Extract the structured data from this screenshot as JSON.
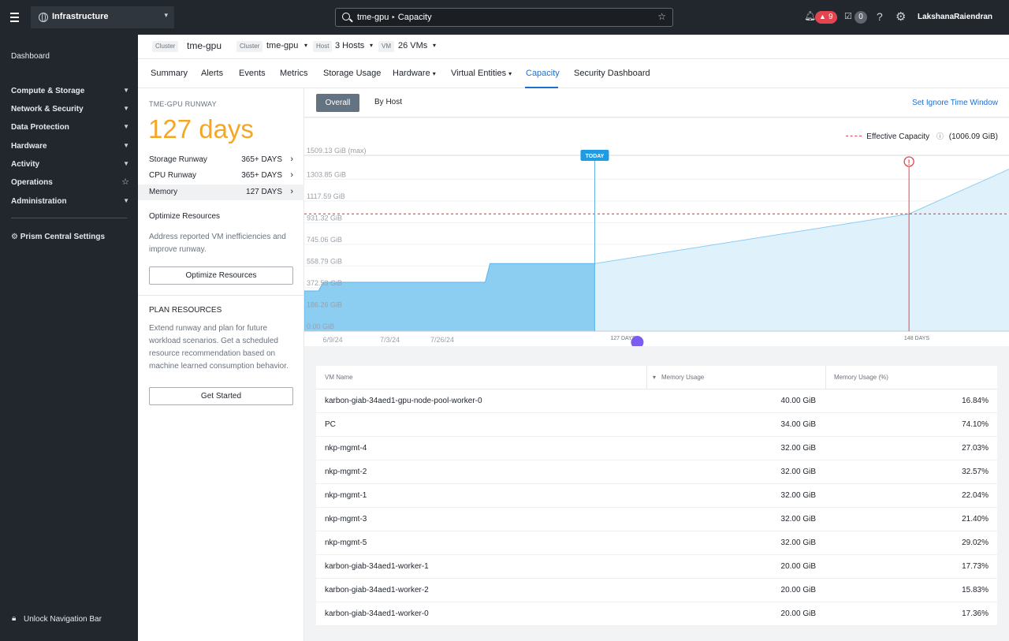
{
  "topbar": {
    "app_label": "Infrastructure",
    "search_entity": "tme-gpu",
    "search_sep": "‣",
    "search_page": "Capacity",
    "alert_count": "9",
    "task_count": "0",
    "user": "LakshanaRaiendran"
  },
  "sidebar": {
    "dashboard": "Dashboard",
    "items": [
      {
        "label": "Compute & Storage"
      },
      {
        "label": "Network & Security"
      },
      {
        "label": "Data Protection"
      },
      {
        "label": "Hardware"
      },
      {
        "label": "Activity"
      },
      {
        "label": "Operations"
      },
      {
        "label": "Administration"
      }
    ],
    "prism_settings": "Prism Central Settings",
    "unlock": "Unlock Navigation Bar"
  },
  "entity": {
    "cluster_chip": "Cluster",
    "cluster_name": "tme-gpu",
    "cluster_chip2": "Cluster",
    "cluster_value": "tme-gpu",
    "host_chip": "Host",
    "host_value": "3 Hosts",
    "vm_chip": "VM",
    "vm_value": "26 VMs"
  },
  "tabs": [
    "Summary",
    "Alerts",
    "Events",
    "Metrics",
    "Storage Usage",
    "Hardware",
    "Virtual Entities",
    "Capacity",
    "Security Dashboard"
  ],
  "left_panel": {
    "runway_title": "TME-GPU RUNWAY",
    "runway_days": "127 days",
    "rows": [
      {
        "label": "Storage Runway",
        "value": "365+ DAYS"
      },
      {
        "label": "CPU Runway",
        "value": "365+ DAYS"
      },
      {
        "label": "Memory",
        "value": "127 DAYS"
      }
    ],
    "optimize_head": "Optimize Resources",
    "optimize_text": "Address reported VM inefficiencies and improve runway.",
    "optimize_button": "Optimize Resources",
    "plan_head": "PLAN RESOURCES",
    "plan_text": "Extend runway and plan for future workload scenarios. Get a scheduled resource recommendation based on machine learned consumption behavior.",
    "plan_button": "Get Started"
  },
  "toolbar": {
    "overall": "Overall",
    "by_host": "By Host",
    "ignore_link": "Set Ignore Time Window"
  },
  "chart_data": {
    "type": "area",
    "legend_label": "Effective Capacity",
    "legend_value": "(1006.09 GiB)",
    "y_ticks": [
      "0.00 GiB",
      "186.26 GiB",
      "372.53 GiB",
      "558.79 GiB",
      "745.06 GiB",
      "931.32 GiB",
      "1117.59 GiB",
      "1303.85 GiB",
      "1509.13 GiB (max)"
    ],
    "y_values": [
      0,
      186.26,
      372.53,
      558.79,
      745.06,
      931.32,
      1117.59,
      1303.85,
      1509.13
    ],
    "x_ticks": [
      "6/9/24",
      "7/3/24",
      "7/26/24"
    ],
    "today_label": "TODAY",
    "runway_marker_label": "127 DAYS",
    "end_label": "148 DAYS",
    "effective_capacity": 1006.09,
    "ylim": [
      0,
      1509.13
    ],
    "x_span_days": 148,
    "today_day": 61,
    "runway_day": 127,
    "actual": [
      [
        0,
        345
      ],
      [
        3,
        345
      ],
      [
        4,
        420
      ],
      [
        38,
        420
      ],
      [
        39,
        580
      ],
      [
        61,
        580
      ]
    ],
    "forecast": [
      [
        61,
        580
      ],
      [
        127,
        1006.09
      ],
      [
        148,
        1390
      ]
    ]
  },
  "table": {
    "headers": {
      "name": "VM Name",
      "mem": "Memory Usage",
      "pct": "Memory Usage (%)"
    },
    "rows": [
      {
        "name": "karbon-giab-34aed1-gpu-node-pool-worker-0",
        "mem": "40.00 GiB",
        "pct": "16.84%"
      },
      {
        "name": "PC",
        "mem": "34.00 GiB",
        "pct": "74.10%"
      },
      {
        "name": "nkp-mgmt-4",
        "mem": "32.00 GiB",
        "pct": "27.03%"
      },
      {
        "name": "nkp-mgmt-2",
        "mem": "32.00 GiB",
        "pct": "32.57%"
      },
      {
        "name": "nkp-mgmt-1",
        "mem": "32.00 GiB",
        "pct": "22.04%"
      },
      {
        "name": "nkp-mgmt-3",
        "mem": "32.00 GiB",
        "pct": "21.40%"
      },
      {
        "name": "nkp-mgmt-5",
        "mem": "32.00 GiB",
        "pct": "29.02%"
      },
      {
        "name": "karbon-giab-34aed1-worker-1",
        "mem": "20.00 GiB",
        "pct": "17.73%"
      },
      {
        "name": "karbon-giab-34aed1-worker-2",
        "mem": "20.00 GiB",
        "pct": "15.83%"
      },
      {
        "name": "karbon-giab-34aed1-worker-0",
        "mem": "20.00 GiB",
        "pct": "17.36%"
      }
    ]
  },
  "colors": {
    "accent": "#1b6fd1",
    "runway": "#f5a623",
    "alert": "#e2454f",
    "area_actual": "#8ccdf2",
    "area_forecast": "#d9eefa",
    "marker": "#7b5cf0"
  }
}
